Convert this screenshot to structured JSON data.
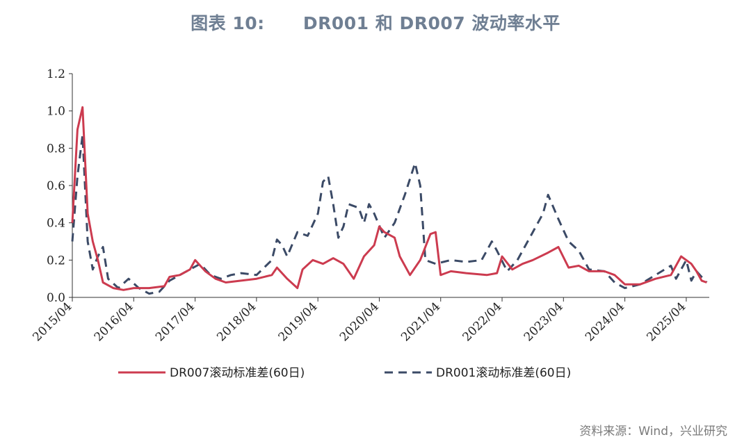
{
  "title": "图表 10:      DR001 和 DR007 波动率水平",
  "source": "资料来源：Wind，兴业研究",
  "colors": {
    "dr007": "#cc3b4f",
    "dr001": "#3b4a66"
  },
  "chart_data": {
    "type": "line",
    "ylim": [
      0,
      1.2
    ],
    "yticks": [
      "0.0",
      "0.2",
      "0.4",
      "0.6",
      "0.8",
      "1.0",
      "1.2"
    ],
    "xticks": [
      "2015/04",
      "2016/04",
      "2017/04",
      "2018/04",
      "2019/04",
      "2020/04",
      "2021/04",
      "2022/04",
      "2023/04",
      "2024/04",
      "2025/04"
    ],
    "legend": [
      "DR007滚动标准差(60日)",
      "DR001滚动标准差(60日)"
    ],
    "series": [
      {
        "name": "DR007滚动标准差(60日)",
        "style": "solid",
        "points": [
          [
            "2015-04",
            0.4
          ],
          [
            "2015-05",
            0.9
          ],
          [
            "2015-06",
            1.02
          ],
          [
            "2015-07",
            0.45
          ],
          [
            "2015-08",
            0.3
          ],
          [
            "2015-09",
            0.2
          ],
          [
            "2015-10",
            0.08
          ],
          [
            "2015-12",
            0.05
          ],
          [
            "2016-02",
            0.04
          ],
          [
            "2016-04",
            0.05
          ],
          [
            "2016-07",
            0.05
          ],
          [
            "2016-10",
            0.06
          ],
          [
            "2016-11",
            0.11
          ],
          [
            "2017-01",
            0.12
          ],
          [
            "2017-03",
            0.15
          ],
          [
            "2017-04",
            0.2
          ],
          [
            "2017-06",
            0.14
          ],
          [
            "2017-08",
            0.1
          ],
          [
            "2017-10",
            0.08
          ],
          [
            "2018-01",
            0.09
          ],
          [
            "2018-04",
            0.1
          ],
          [
            "2018-07",
            0.12
          ],
          [
            "2018-08",
            0.16
          ],
          [
            "2018-10",
            0.1
          ],
          [
            "2018-12",
            0.05
          ],
          [
            "2019-01",
            0.15
          ],
          [
            "2019-03",
            0.2
          ],
          [
            "2019-05",
            0.18
          ],
          [
            "2019-07",
            0.21
          ],
          [
            "2019-09",
            0.18
          ],
          [
            "2019-11",
            0.1
          ],
          [
            "2020-01",
            0.22
          ],
          [
            "2020-03",
            0.28
          ],
          [
            "2020-04",
            0.38
          ],
          [
            "2020-05",
            0.35
          ],
          [
            "2020-07",
            0.32
          ],
          [
            "2020-08",
            0.22
          ],
          [
            "2020-10",
            0.12
          ],
          [
            "2020-12",
            0.2
          ],
          [
            "2021-02",
            0.34
          ],
          [
            "2021-03",
            0.35
          ],
          [
            "2021-04",
            0.12
          ],
          [
            "2021-06",
            0.14
          ],
          [
            "2021-09",
            0.13
          ],
          [
            "2022-01",
            0.12
          ],
          [
            "2022-03",
            0.13
          ],
          [
            "2022-04",
            0.22
          ],
          [
            "2022-06",
            0.15
          ],
          [
            "2022-08",
            0.18
          ],
          [
            "2022-10",
            0.2
          ],
          [
            "2023-01",
            0.24
          ],
          [
            "2023-03",
            0.27
          ],
          [
            "2023-05",
            0.16
          ],
          [
            "2023-07",
            0.17
          ],
          [
            "2023-09",
            0.14
          ],
          [
            "2023-12",
            0.14
          ],
          [
            "2024-02",
            0.12
          ],
          [
            "2024-04",
            0.07
          ],
          [
            "2024-07",
            0.07
          ],
          [
            "2024-10",
            0.1
          ],
          [
            "2025-01",
            0.12
          ],
          [
            "2025-03",
            0.22
          ],
          [
            "2025-05",
            0.18
          ],
          [
            "2025-06",
            0.14
          ],
          [
            "2025-07",
            0.09
          ],
          [
            "2025-08",
            0.08
          ]
        ]
      },
      {
        "name": "DR001滚动标准差(60日)",
        "style": "dashed",
        "points": [
          [
            "2015-04",
            0.3
          ],
          [
            "2015-05",
            0.65
          ],
          [
            "2015-06",
            0.87
          ],
          [
            "2015-07",
            0.3
          ],
          [
            "2015-08",
            0.15
          ],
          [
            "2015-09",
            0.22
          ],
          [
            "2015-10",
            0.27
          ],
          [
            "2015-11",
            0.1
          ],
          [
            "2016-01",
            0.05
          ],
          [
            "2016-03",
            0.1
          ],
          [
            "2016-05",
            0.05
          ],
          [
            "2016-07",
            0.02
          ],
          [
            "2016-09",
            0.03
          ],
          [
            "2016-11",
            0.09
          ],
          [
            "2017-01",
            0.12
          ],
          [
            "2017-03",
            0.15
          ],
          [
            "2017-05",
            0.18
          ],
          [
            "2017-07",
            0.12
          ],
          [
            "2017-09",
            0.1
          ],
          [
            "2017-11",
            0.12
          ],
          [
            "2018-01",
            0.13
          ],
          [
            "2018-04",
            0.12
          ],
          [
            "2018-07",
            0.2
          ],
          [
            "2018-08",
            0.31
          ],
          [
            "2018-09",
            0.28
          ],
          [
            "2018-10",
            0.22
          ],
          [
            "2018-12",
            0.35
          ],
          [
            "2019-02",
            0.33
          ],
          [
            "2019-04",
            0.45
          ],
          [
            "2019-05",
            0.62
          ],
          [
            "2019-06",
            0.65
          ],
          [
            "2019-07",
            0.5
          ],
          [
            "2019-08",
            0.32
          ],
          [
            "2019-09",
            0.38
          ],
          [
            "2019-10",
            0.5
          ],
          [
            "2019-12",
            0.48
          ],
          [
            "2020-01",
            0.4
          ],
          [
            "2020-02",
            0.5
          ],
          [
            "2020-03",
            0.45
          ],
          [
            "2020-05",
            0.32
          ],
          [
            "2020-07",
            0.4
          ],
          [
            "2020-09",
            0.55
          ],
          [
            "2020-11",
            0.72
          ],
          [
            "2020-12",
            0.6
          ],
          [
            "2021-01",
            0.2
          ],
          [
            "2021-03",
            0.18
          ],
          [
            "2021-06",
            0.2
          ],
          [
            "2021-09",
            0.19
          ],
          [
            "2021-12",
            0.2
          ],
          [
            "2022-02",
            0.3
          ],
          [
            "2022-03",
            0.25
          ],
          [
            "2022-05",
            0.14
          ],
          [
            "2022-07",
            0.2
          ],
          [
            "2022-10",
            0.35
          ],
          [
            "2022-12",
            0.45
          ],
          [
            "2023-01",
            0.55
          ],
          [
            "2023-03",
            0.42
          ],
          [
            "2023-05",
            0.3
          ],
          [
            "2023-07",
            0.25
          ],
          [
            "2023-09",
            0.15
          ],
          [
            "2023-12",
            0.14
          ],
          [
            "2024-02",
            0.08
          ],
          [
            "2024-04",
            0.05
          ],
          [
            "2024-07",
            0.07
          ],
          [
            "2024-10",
            0.12
          ],
          [
            "2025-01",
            0.17
          ],
          [
            "2025-02",
            0.1
          ],
          [
            "2025-04",
            0.2
          ],
          [
            "2025-05",
            0.09
          ],
          [
            "2025-06",
            0.14
          ],
          [
            "2025-08",
            0.08
          ]
        ]
      }
    ]
  }
}
